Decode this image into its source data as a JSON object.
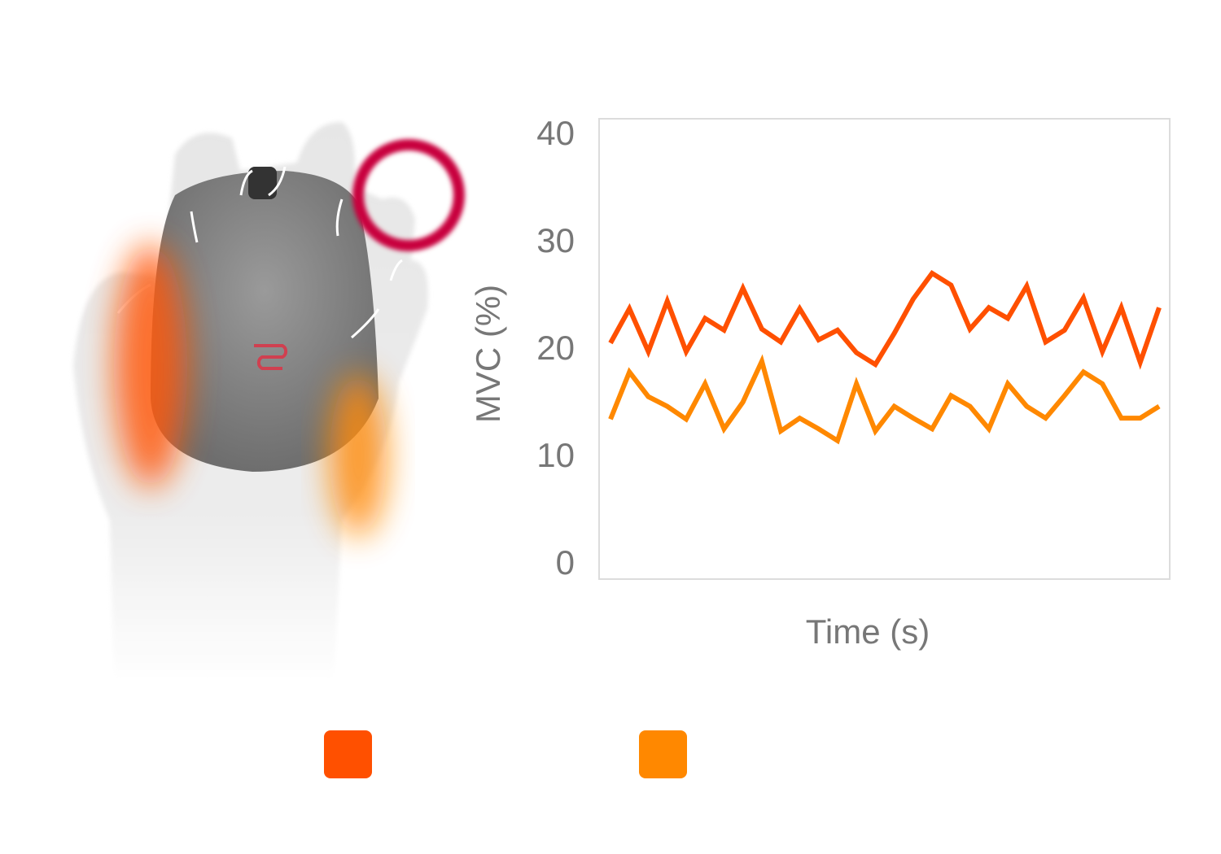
{
  "chart_data": {
    "type": "line",
    "y_label": "MVC (%)",
    "x_label": "Time (s)",
    "categories": [
      null,
      null,
      null,
      null,
      null,
      null,
      null,
      null,
      null,
      null,
      null,
      null,
      null,
      null,
      null,
      null,
      null,
      null,
      null,
      null,
      null,
      null,
      null,
      null,
      null,
      null,
      null,
      null,
      null,
      null
    ],
    "series": [
      {
        "color": "#ff5000",
        "values": [
          20.7,
          23.9,
          19.9,
          24.6,
          19.9,
          23.0,
          21.9,
          25.8,
          22.0,
          20.8,
          23.9,
          21.0,
          21.9,
          19.8,
          18.7,
          21.6,
          24.8,
          27.2,
          26.1,
          22.0,
          24.0,
          23.0,
          26.0,
          20.8,
          21.9,
          24.9,
          19.9,
          24.0,
          18.9,
          24.0
        ]
      },
      {
        "color": "#ff8800",
        "values": [
          13.6,
          18.0,
          15.7,
          14.8,
          13.6,
          16.9,
          12.7,
          15.2,
          19.0,
          12.5,
          13.7,
          12.7,
          11.6,
          16.9,
          12.5,
          14.8,
          13.7,
          12.7,
          15.8,
          14.8,
          12.7,
          16.9,
          14.8,
          13.7,
          15.8,
          18.0,
          16.9,
          13.7,
          13.7,
          14.8
        ]
      }
    ],
    "ylim": [
      -1.3,
      41.6
    ],
    "yticks": [
      0,
      10,
      20,
      30,
      40
    ]
  }
}
